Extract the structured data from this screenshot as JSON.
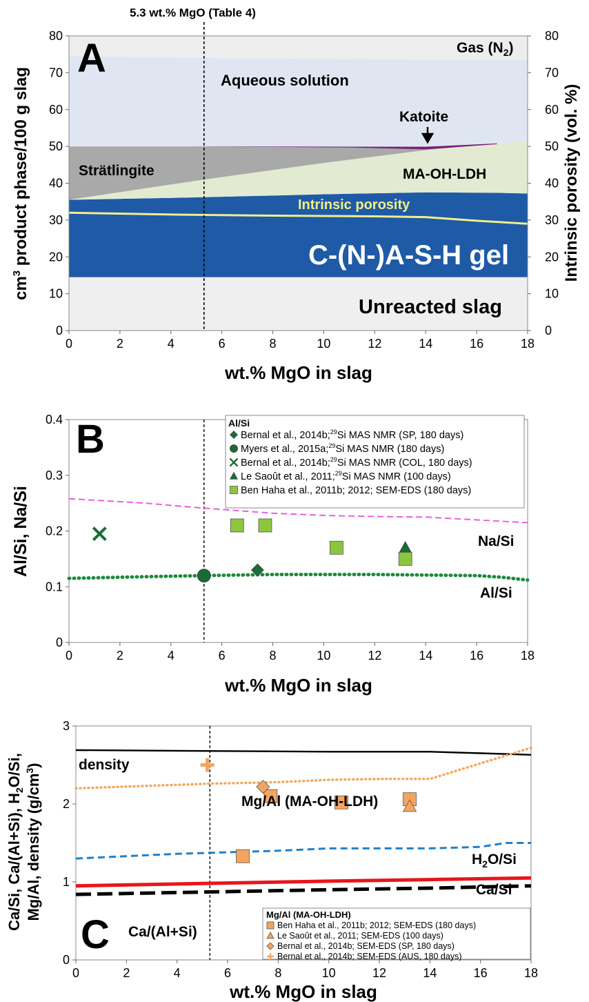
{
  "header_annotation": "5.3 wt.% MgO (Table 4)",
  "reference_line_x": 5.3,
  "colors": {
    "aqueous": "#dfe6f2",
    "gas": "#ededed",
    "stratlingite": "#a9a9a9",
    "ldh": "#e2ead2",
    "csh": "#1f5aa6",
    "porosity_line": "#f2ef8a",
    "unreacted": "#efefef",
    "katoite": "#7a1d78",
    "na_si": "#e85ee0",
    "al_si": "#1e8a3c",
    "marker_green": "#1a6b35",
    "marker_lightgreen": "#8cc63f",
    "density": "#000000",
    "mg_al": "#f0a860",
    "h2o_si": "#1f7fc9",
    "ca_si": "#e8161a",
    "ca_al_si": "#000000",
    "marker_orange": "#f4a460"
  },
  "chart_data": [
    {
      "panel": "A",
      "type": "area",
      "xlabel": "wt.% MgO in slag",
      "ylabel": "cm³ product phase/100 g slag",
      "y2label": "Intrinsic porosity (vol. %)",
      "xlim": [
        0,
        18
      ],
      "ylim": [
        0,
        80
      ],
      "xticks": [
        "0",
        "2",
        "4",
        "6",
        "8",
        "10",
        "12",
        "14",
        "16",
        "18"
      ],
      "yticks": [
        "0",
        "10",
        "20",
        "30",
        "40",
        "50",
        "60",
        "70",
        "80"
      ],
      "y2ticks": [
        "0",
        "10",
        "20",
        "30",
        "40",
        "50",
        "60",
        "70",
        "80"
      ],
      "grid": false,
      "x": [
        0,
        5.3,
        10,
        14,
        16.8,
        18
      ],
      "bands": [
        {
          "name": "Unreacted slag",
          "lower": [
            0,
            0,
            0,
            0,
            0,
            0
          ],
          "upper": [
            14.5,
            14.5,
            14.5,
            14.5,
            14.5,
            14.5
          ]
        },
        {
          "name": "C-(N-)A-S-H gel",
          "lower": [
            14.5,
            14.5,
            14.5,
            14.5,
            14.5,
            14.5
          ],
          "upper": [
            35.5,
            36.2,
            37,
            37.5,
            37.4,
            37.2
          ]
        },
        {
          "name": "MA-OH-LDH",
          "lower": [
            35.5,
            36.2,
            37,
            37.5,
            37.4,
            37.2
          ],
          "upper": [
            35.5,
            41,
            45.5,
            49,
            50.8,
            51.5
          ]
        },
        {
          "name": "Strätlingite",
          "lower": [
            35.5,
            41,
            45.5,
            49,
            50.8,
            51.5
          ],
          "upper": [
            50,
            50,
            50,
            49.8,
            50.8,
            51.5
          ]
        },
        {
          "name": "Katoite",
          "lower": [
            50,
            50,
            50,
            49.2,
            50.8,
            51.5
          ],
          "upper": [
            50,
            50,
            50,
            49.8,
            50.8,
            51.5
          ]
        },
        {
          "name": "Aqueous solution",
          "lower": [
            50,
            50,
            50,
            49.8,
            50.8,
            51.5
          ],
          "upper": [
            74.5,
            74,
            73.8,
            73.6,
            73.6,
            73.5
          ]
        },
        {
          "name": "Gas (N2)",
          "lower": [
            74.5,
            74,
            73.8,
            73.6,
            73.6,
            73.5
          ],
          "upper": [
            80,
            80,
            80,
            80,
            80,
            80
          ]
        }
      ],
      "intrinsic_porosity": {
        "name": "Intrinsic porosity",
        "x": [
          0,
          4,
          8,
          12,
          14,
          16,
          18
        ],
        "y": [
          32,
          31.5,
          31.2,
          31,
          30.8,
          29.8,
          29
        ]
      },
      "labels": {
        "panel": "A",
        "gas": "Gas (N",
        "gas_sub": "2",
        "gas_end": ")",
        "aqueous": "Aqueous solution",
        "katoite": "Katoite",
        "stratlingite": "Strätlingite",
        "ldh": "MA-OH-LDH",
        "porosity": "Intrinsic porosity",
        "gel": "C-(N-)A-S-H gel",
        "unreacted": "Unreacted slag"
      }
    },
    {
      "panel": "B",
      "type": "scatter",
      "xlabel": "wt.% MgO in slag",
      "ylabel": "Al/Si, Na/Si",
      "xlim": [
        0,
        18
      ],
      "ylim": [
        0,
        0.4
      ],
      "xticks": [
        "0",
        "2",
        "4",
        "6",
        "8",
        "10",
        "12",
        "14",
        "16",
        "18"
      ],
      "yticks": [
        "0",
        "0.1",
        "0.2",
        "0.3",
        "0.4"
      ],
      "grid": false,
      "lines": [
        {
          "name": "Na/Si",
          "style": "dashed",
          "x": [
            0,
            3,
            5.3,
            8,
            10,
            12,
            14,
            16,
            18
          ],
          "y": [
            0.258,
            0.25,
            0.241,
            0.232,
            0.228,
            0.226,
            0.225,
            0.22,
            0.215
          ]
        },
        {
          "name": "Al/Si",
          "style": "dotted",
          "x": [
            0,
            3,
            5.3,
            8,
            10,
            12,
            14,
            16,
            17,
            18
          ],
          "y": [
            0.115,
            0.118,
            0.12,
            0.122,
            0.122,
            0.122,
            0.121,
            0.12,
            0.117,
            0.112
          ]
        }
      ],
      "legend_title": "Al/Si",
      "legend_position": "top-right",
      "series": [
        {
          "marker": "diamond",
          "color": "#1a6b35",
          "x": [
            7.4
          ],
          "y": [
            0.13
          ],
          "label_pre": "Bernal et al., 2014b;",
          "label_sup": "29",
          "label_post": "Si MAS NMR (SP, 180 days)"
        },
        {
          "marker": "circle",
          "color": "#1a6b35",
          "x": [
            5.3
          ],
          "y": [
            0.12
          ],
          "label_pre": "Myers et al., 2015a;",
          "label_sup": "29",
          "label_post": "Si MAS NMR (180 days)"
        },
        {
          "marker": "x",
          "color": "#1a6b35",
          "x": [
            1.2
          ],
          "y": [
            0.195
          ],
          "label_pre": "Bernal et al., 2014b;",
          "label_sup": "29",
          "label_post": "Si MAS NMR (COL, 180 days)"
        },
        {
          "marker": "triangle",
          "color": "#1a6b35",
          "x": [
            13.2
          ],
          "y": [
            0.17
          ],
          "label_pre": "Le Saoût et al., 2011;",
          "label_sup": "29",
          "label_post": "Si MAS NMR (100 days)"
        },
        {
          "marker": "square",
          "color": "#8cc63f",
          "x": [
            6.6,
            7.7,
            10.5,
            13.2
          ],
          "y": [
            0.21,
            0.21,
            0.17,
            0.15
          ],
          "label_pre": "Ben Haha et al., 2011b; 2012; SEM-EDS (180 days)",
          "label_sup": "",
          "label_post": ""
        }
      ],
      "labels": {
        "panel": "B",
        "na_si": "Na/Si",
        "al_si": "Al/Si"
      }
    },
    {
      "panel": "C",
      "type": "scatter",
      "xlabel": "wt.% MgO in slag",
      "ylabel": "Ca/Si, Ca/(Al+Si), H₂O/Si, Mg/Al, density (g/cm³)",
      "xlim": [
        0,
        18
      ],
      "ylim": [
        0,
        3
      ],
      "xticks": [
        "0",
        "2",
        "4",
        "6",
        "8",
        "10",
        "12",
        "14",
        "16",
        "18"
      ],
      "yticks": [
        "0",
        "1",
        "2",
        "3"
      ],
      "grid": false,
      "lines": [
        {
          "name": "density",
          "style": "solid",
          "x": [
            0,
            5,
            10,
            14,
            16,
            18
          ],
          "y": [
            2.69,
            2.68,
            2.67,
            2.67,
            2.65,
            2.63
          ]
        },
        {
          "name": "Mg/Al (MA-OH-LDH)",
          "style": "dotted",
          "x": [
            0,
            5.3,
            8,
            10,
            12,
            14,
            16,
            17.5,
            18
          ],
          "y": [
            2.2,
            2.26,
            2.28,
            2.31,
            2.32,
            2.32,
            2.52,
            2.67,
            2.72
          ]
        },
        {
          "name": "H2O/Si",
          "style": "dashed",
          "x": [
            0,
            4,
            8,
            10,
            14,
            16,
            17,
            18
          ],
          "y": [
            1.3,
            1.36,
            1.4,
            1.43,
            1.43,
            1.45,
            1.5,
            1.5
          ]
        },
        {
          "name": "Ca/Si",
          "style": "solid",
          "x": [
            0,
            5,
            10,
            14,
            18
          ],
          "y": [
            0.95,
            0.98,
            1.01,
            1.03,
            1.05
          ]
        },
        {
          "name": "Ca/(Al+Si)",
          "style": "dashed",
          "x": [
            0,
            5,
            10,
            14,
            18
          ],
          "y": [
            0.84,
            0.87,
            0.9,
            0.92,
            0.95
          ]
        }
      ],
      "legend_title": "Mg/Al (MA-OH-LDH)",
      "legend_position": "bottom-right",
      "series": [
        {
          "marker": "square",
          "color": "#f4a460",
          "x": [
            6.6,
            7.7,
            10.5,
            13.2
          ],
          "y": [
            1.33,
            2.1,
            2.02,
            2.06
          ],
          "label": "Ben Haha et al., 2011b; 2012; SEM-EDS (180 days)"
        },
        {
          "marker": "triangle",
          "color": "#f4a460",
          "x": [
            13.2
          ],
          "y": [
            1.97
          ],
          "label": "Le Saoût et al., 2011; SEM-EDS (100 days)"
        },
        {
          "marker": "diamond",
          "color": "#f4a460",
          "x": [
            7.4
          ],
          "y": [
            2.22
          ],
          "label": "Bernal et al., 2014b; SEM-EDS (SP, 180 days)"
        },
        {
          "marker": "plus",
          "color": "#f4a460",
          "x": [
            5.2
          ],
          "y": [
            2.5
          ],
          "label": "Bernal et al., 2014b; SEM-EDS (AUS, 180 days)"
        }
      ],
      "labels": {
        "panel": "C",
        "density": "density",
        "mg_al": "Mg/Al (MA-OH-LDH)",
        "h2o_pre": "H",
        "h2o_sub": "2",
        "h2o_post": "O/Si",
        "ca_si": "Ca/Si",
        "ca_al_si": "Ca/(Al+Si)"
      }
    }
  ]
}
